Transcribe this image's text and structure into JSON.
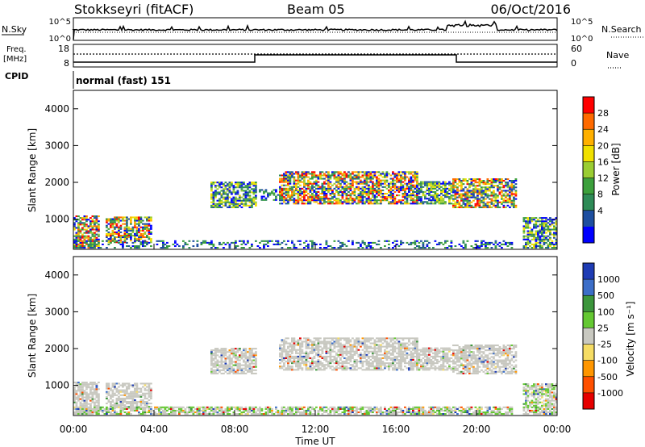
{
  "header": {
    "station": "Stokkseyri (fitACF)",
    "beam": "Beam 05",
    "date": "06/Oct/2016"
  },
  "noise_panel": {
    "left_label": "N.Sky",
    "left_ticks": [
      "10^5",
      "10^0"
    ],
    "right_label": "N.Search",
    "right_ticks": [
      "10^5",
      "10^0"
    ]
  },
  "freq_panel": {
    "left_label_1": "Freq.",
    "left_label_2": "[MHz]",
    "left_ticks": [
      "18",
      "8"
    ],
    "right_label": "Nave",
    "right_ticks": [
      "60",
      "0"
    ]
  },
  "cpid": {
    "label": "CPID",
    "mode": "normal (fast) 151"
  },
  "chart_data": [
    {
      "type": "heatmap",
      "title": "",
      "quantity": "Power",
      "ylabel": "Slant Range [km]",
      "ylim": [
        180,
        4500
      ],
      "yticks": [
        1000,
        2000,
        3000,
        4000
      ],
      "xlabel": "Time UT",
      "xlim_hours": [
        0,
        24
      ],
      "colorbar": {
        "label": "Power [dB]",
        "ticks": [
          "28",
          "24",
          "20",
          "16",
          "12",
          "8",
          "4"
        ],
        "colors": [
          "#ff0000",
          "#ff6a00",
          "#ffb000",
          "#f0e000",
          "#9acd32",
          "#3ca03c",
          "#2e8b57",
          "#1e4fa0",
          "#0000ff"
        ]
      },
      "echo_regions": [
        {
          "t0": 0.0,
          "t1": 1.3,
          "r0": 200,
          "r1": 1100,
          "level": "high"
        },
        {
          "t0": 1.6,
          "t1": 3.9,
          "r0": 350,
          "r1": 1050,
          "level": "high"
        },
        {
          "t0": 0.0,
          "t1": 21.8,
          "r0": 200,
          "r1": 420,
          "level": "low"
        },
        {
          "t0": 6.8,
          "t1": 9.0,
          "r0": 1300,
          "r1": 2000,
          "level": "mid"
        },
        {
          "t0": 9.2,
          "t1": 10.8,
          "r0": 1500,
          "r1": 1800,
          "level": "low"
        },
        {
          "t0": 10.2,
          "t1": 17.0,
          "r0": 1400,
          "r1": 2300,
          "level": "high"
        },
        {
          "t0": 17.0,
          "t1": 18.8,
          "r0": 1400,
          "r1": 2000,
          "level": "mid"
        },
        {
          "t0": 18.8,
          "t1": 22.0,
          "r0": 1300,
          "r1": 2100,
          "level": "high"
        },
        {
          "t0": 22.3,
          "t1": 24.0,
          "r0": 200,
          "r1": 1050,
          "level": "mid"
        }
      ]
    },
    {
      "type": "heatmap",
      "title": "",
      "quantity": "Velocity",
      "ylabel": "Slant Range [km]",
      "ylim": [
        180,
        4500
      ],
      "yticks": [
        1000,
        2000,
        3000,
        4000
      ],
      "xlabel": "Time UT",
      "xlim_hours": [
        0,
        24
      ],
      "colorbar": {
        "label": "Velocity [m s⁻¹]",
        "ticks": [
          "1000",
          "500",
          "100",
          "25",
          "-25",
          "-100",
          "-500",
          "-1000"
        ],
        "colors": [
          "#1e3cb4",
          "#3c6ec8",
          "#3c963c",
          "#64c832",
          "#c8c8c0",
          "#f5dc64",
          "#ff9600",
          "#ff5000",
          "#e60000"
        ]
      },
      "echo_regions": [
        {
          "t0": 0.0,
          "t1": 1.3,
          "r0": 200,
          "r1": 1100,
          "level": "ground"
        },
        {
          "t0": 1.6,
          "t1": 3.9,
          "r0": 350,
          "r1": 1050,
          "level": "ground"
        },
        {
          "t0": 0.0,
          "t1": 21.8,
          "r0": 200,
          "r1": 420,
          "level": "mixed"
        },
        {
          "t0": 6.8,
          "t1": 9.0,
          "r0": 1300,
          "r1": 2000,
          "level": "ground"
        },
        {
          "t0": 10.2,
          "t1": 17.0,
          "r0": 1400,
          "r1": 2300,
          "level": "ground"
        },
        {
          "t0": 17.0,
          "t1": 18.8,
          "r0": 1400,
          "r1": 2000,
          "level": "ground"
        },
        {
          "t0": 18.8,
          "t1": 22.0,
          "r0": 1300,
          "r1": 2100,
          "level": "ground"
        },
        {
          "t0": 22.3,
          "t1": 24.0,
          "r0": 200,
          "r1": 1050,
          "level": "mixed"
        }
      ]
    }
  ],
  "x_axis": {
    "ticks": [
      "00:00",
      "04:00",
      "08:00",
      "12:00",
      "16:00",
      "20:00",
      "00:00"
    ],
    "label": "Time UT"
  }
}
